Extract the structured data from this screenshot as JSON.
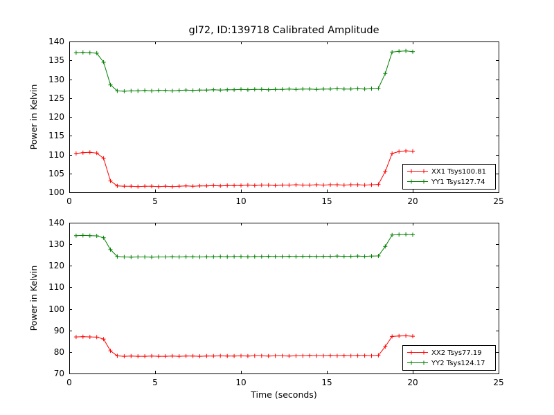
{
  "figure": {
    "title": "gl72, ID:139718 Calibrated Amplitude",
    "background": "#ffffff"
  },
  "chart_data": [
    {
      "type": "line",
      "ylabel": "Power in Kelvin",
      "xlabel": "",
      "xlim": [
        0,
        25
      ],
      "ylim": [
        100,
        140
      ],
      "xticks": [
        0,
        5,
        10,
        15,
        20,
        25
      ],
      "yticks": [
        100,
        105,
        110,
        115,
        120,
        125,
        130,
        135,
        140
      ],
      "grid": false,
      "legend_position": "lower right",
      "marker": "+",
      "x": [
        0.4,
        0.8,
        1.2,
        1.6,
        2.0,
        2.4,
        2.8,
        3.2,
        3.6,
        4.0,
        4.4,
        4.8,
        5.2,
        5.6,
        6.0,
        6.4,
        6.8,
        7.2,
        7.6,
        8.0,
        8.4,
        8.8,
        9.2,
        9.6,
        10.0,
        10.4,
        10.8,
        11.2,
        11.6,
        12.0,
        12.4,
        12.8,
        13.2,
        13.6,
        14.0,
        14.4,
        14.8,
        15.2,
        15.6,
        16.0,
        16.4,
        16.8,
        17.2,
        17.6,
        18.0,
        18.4,
        18.8,
        19.2,
        19.6,
        20.0
      ],
      "series": [
        {
          "name": "XX1 Tsys100.81",
          "color": "#ff0000",
          "values": [
            110.3,
            110.5,
            110.6,
            110.4,
            109.0,
            103.0,
            101.7,
            101.6,
            101.6,
            101.5,
            101.6,
            101.6,
            101.5,
            101.6,
            101.5,
            101.6,
            101.7,
            101.6,
            101.7,
            101.7,
            101.8,
            101.7,
            101.8,
            101.8,
            101.8,
            101.9,
            101.8,
            101.9,
            101.9,
            101.8,
            101.9,
            101.9,
            102.0,
            101.9,
            101.9,
            102.0,
            101.9,
            102.0,
            102.0,
            101.9,
            102.0,
            102.0,
            101.9,
            102.0,
            102.1,
            105.5,
            110.3,
            110.8,
            111.0,
            110.9
          ]
        },
        {
          "name": "YY1 Tsys127.74",
          "color": "#008000",
          "values": [
            137.0,
            137.1,
            137.0,
            136.9,
            134.5,
            128.5,
            126.9,
            126.8,
            126.9,
            126.9,
            127.0,
            126.9,
            127.0,
            127.0,
            126.9,
            127.0,
            127.1,
            127.0,
            127.1,
            127.1,
            127.2,
            127.1,
            127.2,
            127.2,
            127.3,
            127.2,
            127.3,
            127.3,
            127.2,
            127.3,
            127.3,
            127.4,
            127.3,
            127.4,
            127.4,
            127.3,
            127.4,
            127.4,
            127.5,
            127.4,
            127.4,
            127.5,
            127.4,
            127.5,
            127.6,
            131.5,
            137.2,
            137.4,
            137.5,
            137.3
          ]
        }
      ]
    },
    {
      "type": "line",
      "ylabel": "Power in Kelvin",
      "xlabel": "Time (seconds)",
      "xlim": [
        0,
        25
      ],
      "ylim": [
        70,
        140
      ],
      "xticks": [
        0,
        5,
        10,
        15,
        20,
        25
      ],
      "yticks": [
        70,
        80,
        90,
        100,
        110,
        120,
        130,
        140
      ],
      "grid": false,
      "legend_position": "lower right",
      "marker": "+",
      "x": [
        0.4,
        0.8,
        1.2,
        1.6,
        2.0,
        2.4,
        2.8,
        3.2,
        3.6,
        4.0,
        4.4,
        4.8,
        5.2,
        5.6,
        6.0,
        6.4,
        6.8,
        7.2,
        7.6,
        8.0,
        8.4,
        8.8,
        9.2,
        9.6,
        10.0,
        10.4,
        10.8,
        11.2,
        11.6,
        12.0,
        12.4,
        12.8,
        13.2,
        13.6,
        14.0,
        14.4,
        14.8,
        15.2,
        15.6,
        16.0,
        16.4,
        16.8,
        17.2,
        17.6,
        18.0,
        18.4,
        18.8,
        19.2,
        19.6,
        20.0
      ],
      "series": [
        {
          "name": "XX2 Tsys77.19",
          "color": "#ff0000",
          "values": [
            87.0,
            87.1,
            87.0,
            86.9,
            86.0,
            80.5,
            78.2,
            78.0,
            78.1,
            78.0,
            78.0,
            78.1,
            78.0,
            78.0,
            78.1,
            78.0,
            78.1,
            78.1,
            78.0,
            78.1,
            78.1,
            78.2,
            78.1,
            78.1,
            78.2,
            78.1,
            78.2,
            78.2,
            78.1,
            78.2,
            78.2,
            78.1,
            78.2,
            78.2,
            78.3,
            78.2,
            78.2,
            78.3,
            78.2,
            78.3,
            78.2,
            78.3,
            78.3,
            78.2,
            78.4,
            82.5,
            87.2,
            87.4,
            87.5,
            87.3
          ]
        },
        {
          "name": "YY2 Tsys124.17",
          "color": "#008000",
          "values": [
            134.0,
            134.1,
            134.0,
            133.9,
            133.0,
            127.5,
            124.3,
            124.1,
            124.0,
            124.1,
            124.1,
            124.0,
            124.1,
            124.1,
            124.2,
            124.1,
            124.2,
            124.2,
            124.1,
            124.2,
            124.2,
            124.3,
            124.2,
            124.3,
            124.3,
            124.2,
            124.3,
            124.3,
            124.4,
            124.3,
            124.3,
            124.4,
            124.3,
            124.4,
            124.4,
            124.3,
            124.4,
            124.4,
            124.5,
            124.4,
            124.4,
            124.5,
            124.4,
            124.5,
            124.6,
            129.0,
            134.3,
            134.5,
            134.6,
            134.4
          ]
        }
      ]
    }
  ]
}
